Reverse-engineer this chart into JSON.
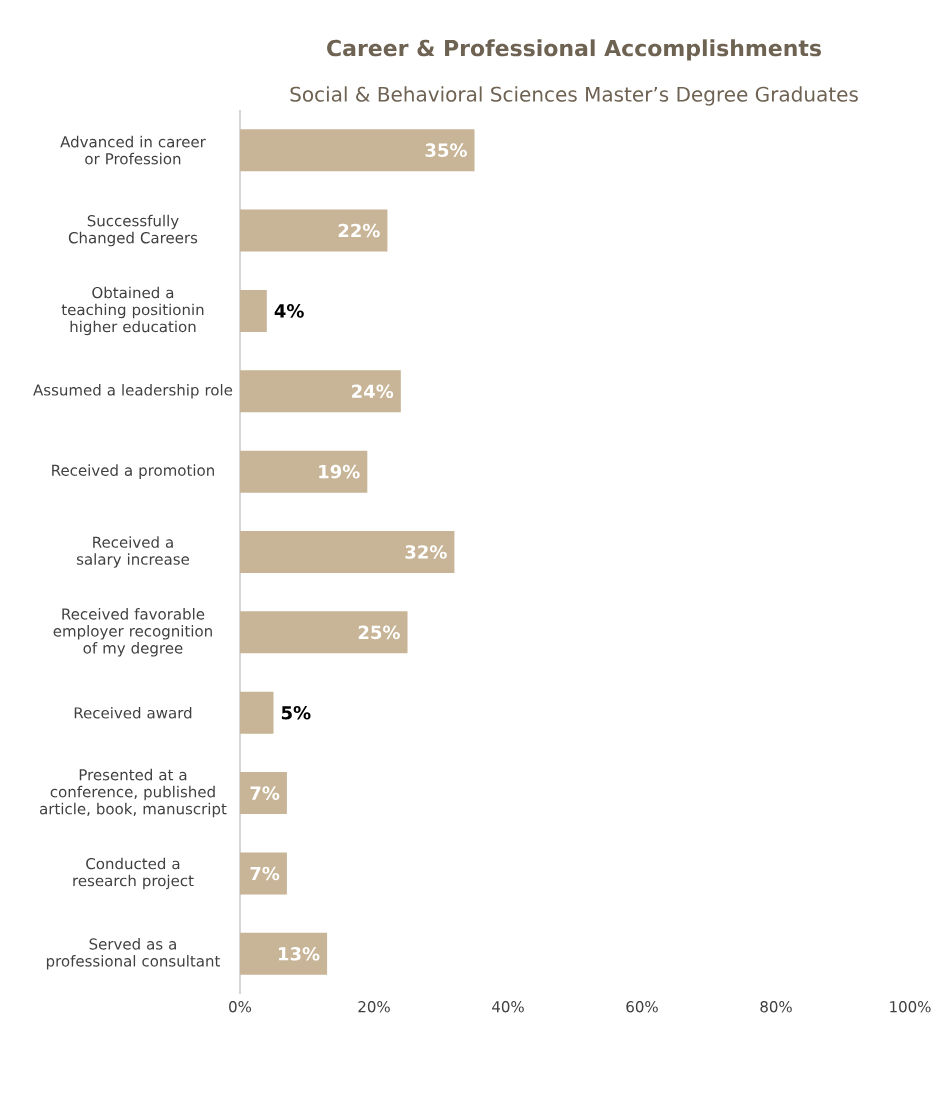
{
  "chart_data": {
    "type": "bar",
    "orientation": "horizontal",
    "title": "Career & Professional Accomplishments",
    "subtitle": "Social & Behavioral Sciences Master’s Degree Graduates",
    "categories": [
      "Advanced in career or Profession",
      "Successfully Changed Careers",
      "Obtained a  teaching positionin higher education",
      "Assumed a leadership role",
      "Received a promotion",
      "Received a salary increase",
      "Received favorable employer recognition of my degree",
      "Received award",
      "Presented at a conference, published article, book, manuscript",
      "Conducted a research project",
      "Served as a professional consultant"
    ],
    "values": [
      35,
      22,
      4,
      24,
      19,
      32,
      25,
      5,
      7,
      7,
      13
    ],
    "value_labels": [
      "35%",
      "22%",
      "4%",
      "24%",
      "19%",
      "32%",
      "25%",
      "5%",
      "7%",
      "7%",
      "13%"
    ],
    "color": "#c8b496",
    "xlim": [
      0,
      100
    ],
    "xticks": [
      {
        "value": 0,
        "label": "0%"
      },
      {
        "value": 20,
        "label": "20%"
      },
      {
        "value": 40,
        "label": "40%"
      },
      {
        "value": 60,
        "label": "60%"
      },
      {
        "value": 80,
        "label": "80%"
      },
      {
        "value": 100,
        "label": "100%"
      }
    ]
  }
}
